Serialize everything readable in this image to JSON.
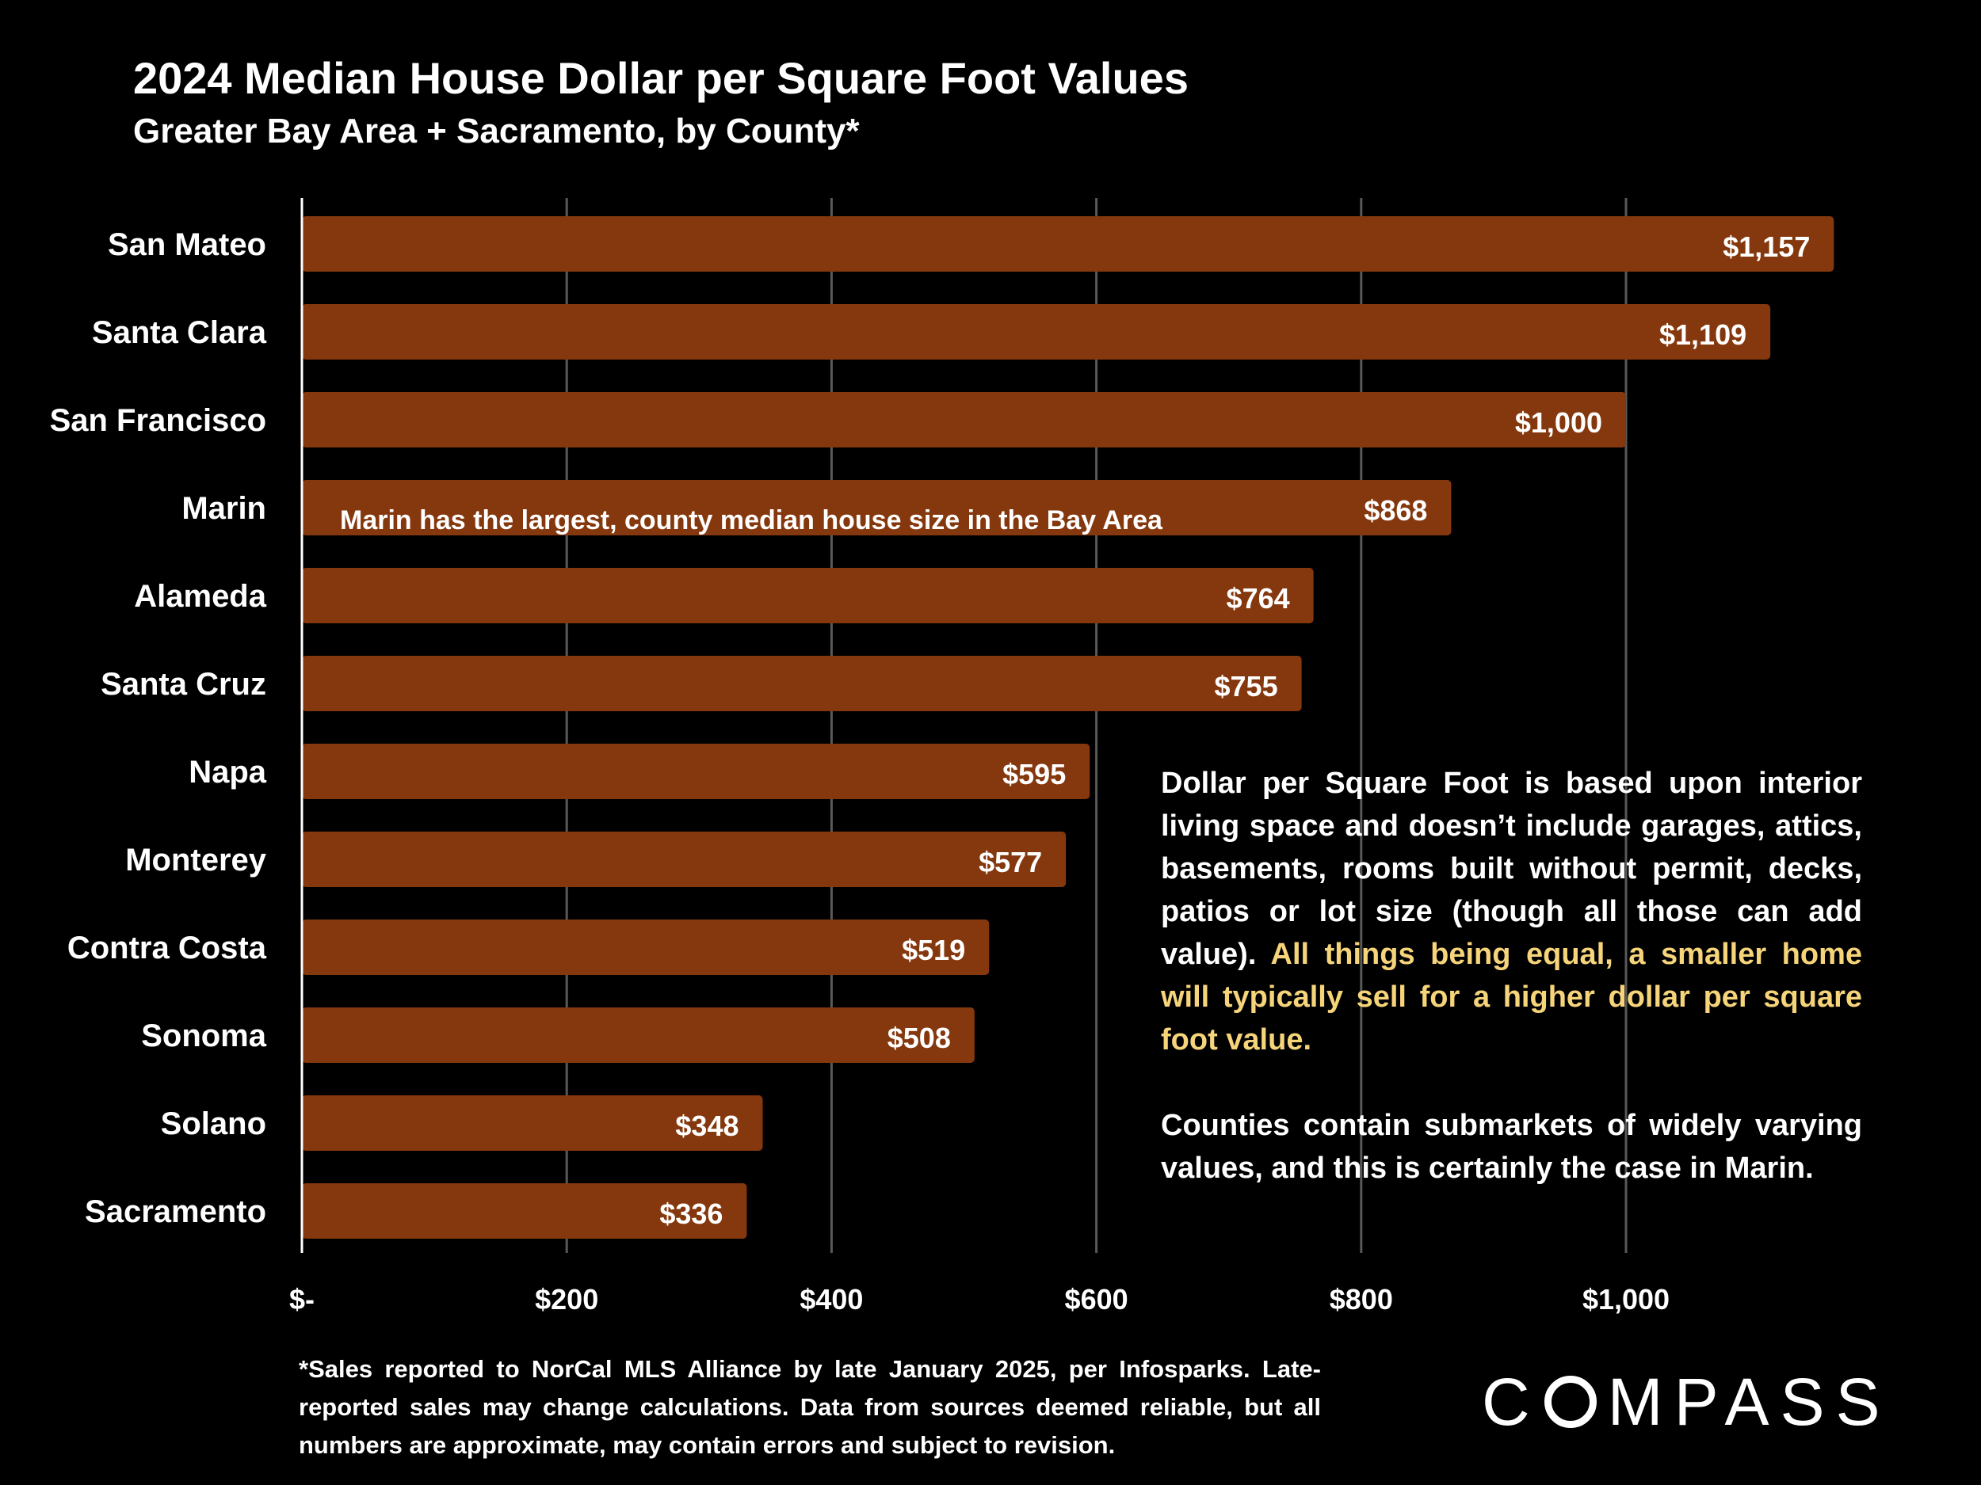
{
  "header": {
    "title": "2024 Median House Dollar per Square Foot Values",
    "subtitle": "Greater Bay Area + Sacramento, by County*"
  },
  "chart_data": {
    "type": "bar",
    "orientation": "horizontal",
    "categories": [
      "San Mateo",
      "Santa Clara",
      "San Francisco",
      "Marin",
      "Alameda",
      "Santa Cruz",
      "Napa",
      "Monterey",
      "Contra Costa",
      "Sonoma",
      "Solano",
      "Sacramento"
    ],
    "values": [
      1157,
      1109,
      1000,
      868,
      764,
      755,
      595,
      577,
      519,
      508,
      348,
      336
    ],
    "data_labels": [
      "$1,157",
      "$1,109",
      "$1,000",
      "$868",
      "$764",
      "$755",
      "$595",
      "$577",
      "$519",
      "$508",
      "$348",
      "$336"
    ],
    "title": "2024 Median House Dollar per Square Foot Values",
    "xlabel": "",
    "ylabel": "",
    "xlim": [
      0,
      1200
    ],
    "x_ticks": [
      0,
      200,
      400,
      600,
      800,
      1000
    ],
    "x_tick_labels": [
      "$-",
      "$200",
      "$400",
      "$600",
      "$800",
      "$1,000"
    ],
    "grid": true,
    "bar_color": "#85380d",
    "annotation": "Marin has the largest, county median house size in the Bay Area"
  },
  "note": {
    "text_1": "Dollar per Square Foot is based upon interior living space and doesn’t include garages, attics, basements, rooms built without permit, decks, patios or lot size (though all those can add value). ",
    "text_highlight": "All things being equal, a smaller home will typically sell for a higher dollar per square foot value.",
    "text_2": "Counties contain submarkets of widely varying values, and this is certainly the case in Marin."
  },
  "footnote": "*Sales reported to NorCal MLS Alliance by late January 2025, per Infosparks. Late-reported sales may change calculations. Data from sources deemed reliable, but all numbers are approximate, may contain errors and subject to revision.",
  "logo": {
    "prefix": "C",
    "suffix": "MPASS"
  },
  "colors": {
    "background": "#000000",
    "bar": "#85380d",
    "gridline": "#595959",
    "highlight": "#f6d47a",
    "text": "#ffffff"
  }
}
